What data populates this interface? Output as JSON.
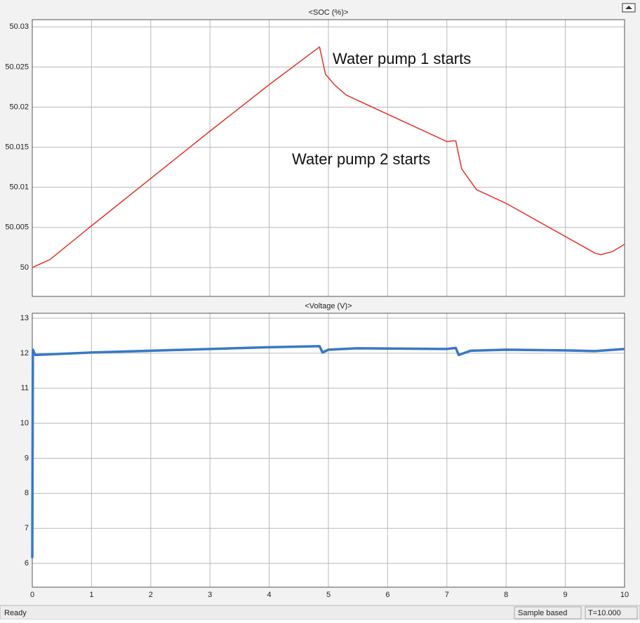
{
  "chart_data": [
    {
      "type": "line",
      "title": "<SOC (%)>",
      "color": "#e3342a",
      "x": [
        0,
        0.3,
        1,
        2,
        3,
        4,
        4.85,
        4.95,
        5.1,
        5.3,
        7.0,
        7.1,
        7.15,
        7.25,
        7.5,
        8,
        9.5,
        9.6,
        9.8,
        10
      ],
      "values": [
        50,
        50.001,
        50.0052,
        50.0111,
        50.017,
        50.0228,
        50.0275,
        50.0241,
        50.0228,
        50.0215,
        50.0157,
        50.0158,
        50.0158,
        50.0123,
        50.0097,
        50.008,
        50.0018,
        50.0016,
        50.002,
        50.0029
      ],
      "xlim": [
        0,
        10
      ],
      "ylim": [
        49.9964,
        50.0309
      ],
      "yticks": [
        50,
        50.005,
        50.01,
        50.015,
        50.02,
        50.025,
        50.03
      ],
      "grid": true,
      "annotations": [
        "Water pump 1 starts",
        "Water pump 2 starts"
      ]
    },
    {
      "type": "line",
      "title": "<Voltage (V)>",
      "color": "#3a78c4",
      "x": [
        0,
        0.01,
        0.05,
        1,
        2,
        3,
        4,
        4.85,
        4.9,
        5.0,
        5.5,
        7.0,
        7.15,
        7.2,
        7.4,
        8,
        9,
        9.5,
        10
      ],
      "values": [
        6.15,
        12.1,
        11.95,
        12.02,
        12.07,
        12.12,
        12.17,
        12.2,
        12.02,
        12.1,
        12.14,
        12.12,
        12.15,
        11.95,
        12.07,
        12.1,
        12.08,
        12.06,
        12.12
      ],
      "xlim": [
        0,
        10
      ],
      "ylim": [
        5.32,
        13.14
      ],
      "xticks": [
        0,
        1,
        2,
        3,
        4,
        5,
        6,
        7,
        8,
        9,
        10
      ],
      "yticks": [
        6,
        7,
        8,
        9,
        10,
        11,
        12,
        13
      ],
      "grid": true
    }
  ],
  "status_bar": {
    "state": "Ready",
    "mode": "Sample based",
    "time": "T=10.000"
  }
}
